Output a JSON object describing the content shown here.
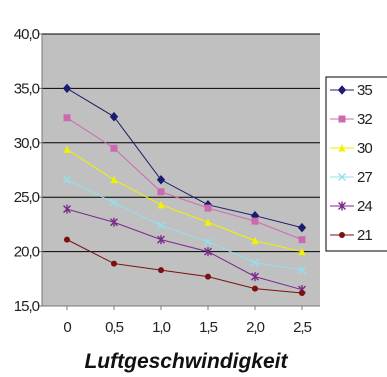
{
  "chart_data": {
    "type": "line",
    "title": "",
    "xlabel": "Luftgeschwindigkeit",
    "ylabel": "",
    "categories": [
      "0",
      "0,5",
      "1,0",
      "1,5",
      "2,0",
      "2,5"
    ],
    "y_ticks": [
      "15,0",
      "20,0",
      "25,0",
      "30,0",
      "35,0",
      "40,0"
    ],
    "ylim": [
      15,
      40
    ],
    "grid": "horizontal",
    "legend_position": "right",
    "plot_background": "#c0c0c0",
    "series": [
      {
        "name": "35",
        "color": "#1c1c6e",
        "marker": "diamond",
        "values": [
          35.0,
          32.4,
          26.6,
          24.3,
          23.3,
          22.2
        ]
      },
      {
        "name": "32",
        "color": "#cc6ab0",
        "marker": "square",
        "values": [
          32.3,
          29.5,
          25.5,
          24.0,
          22.8,
          21.1
        ]
      },
      {
        "name": "30",
        "color": "#f2f200",
        "marker": "triangle",
        "values": [
          29.4,
          26.6,
          24.3,
          22.7,
          21.0,
          20.0
        ]
      },
      {
        "name": "27",
        "color": "#90e0f0",
        "marker": "x",
        "values": [
          26.6,
          24.5,
          22.4,
          20.9,
          19.0,
          18.3
        ]
      },
      {
        "name": "24",
        "color": "#7a2a8c",
        "marker": "star",
        "values": [
          23.9,
          22.7,
          21.1,
          20.0,
          17.7,
          16.5
        ]
      },
      {
        "name": "21",
        "color": "#7a1010",
        "marker": "circle",
        "values": [
          21.1,
          18.9,
          18.3,
          17.7,
          16.6,
          16.2
        ]
      }
    ]
  }
}
